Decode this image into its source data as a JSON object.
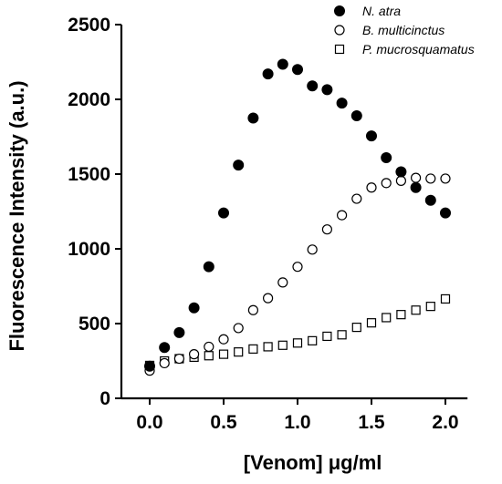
{
  "chart_data": {
    "type": "scatter",
    "xlabel": "[Venom] μg/ml",
    "ylabel": "Fluorescence Intensity (a.u.)",
    "xlim": [
      -0.1,
      2.1
    ],
    "ylim": [
      0,
      2500
    ],
    "xticks": [
      "0.0",
      "0.5",
      "1.0",
      "1.5",
      "2.0"
    ],
    "yticks": [
      "0",
      "500",
      "1000",
      "1500",
      "2000",
      "2500"
    ],
    "xtick_values": [
      0,
      0.5,
      1.0,
      1.5,
      2.0
    ],
    "ytick_values": [
      0,
      500,
      1000,
      1500,
      2000,
      2500
    ],
    "legend_position": "top-right",
    "series": [
      {
        "name": "N. atra",
        "marker": "filled-circle",
        "color": "#000000",
        "x": [
          0.0,
          0.1,
          0.2,
          0.3,
          0.4,
          0.5,
          0.6,
          0.7,
          0.8,
          0.9,
          1.0,
          1.1,
          1.2,
          1.3,
          1.4,
          1.5,
          1.6,
          1.7,
          1.8,
          1.9,
          2.0
        ],
        "y": [
          215,
          340,
          440,
          605,
          880,
          1240,
          1560,
          1875,
          2170,
          2235,
          2200,
          2090,
          2065,
          1975,
          1890,
          1755,
          1610,
          1515,
          1410,
          1325,
          1240
        ]
      },
      {
        "name": "B. multicinctus",
        "marker": "open-circle",
        "color": "#000000",
        "x": [
          0.0,
          0.1,
          0.2,
          0.3,
          0.4,
          0.5,
          0.6,
          0.7,
          0.8,
          0.9,
          1.0,
          1.1,
          1.2,
          1.3,
          1.4,
          1.5,
          1.6,
          1.7,
          1.8,
          1.9,
          2.0
        ],
        "y": [
          185,
          235,
          265,
          295,
          345,
          395,
          470,
          590,
          670,
          775,
          880,
          995,
          1130,
          1225,
          1335,
          1410,
          1440,
          1455,
          1475,
          1470,
          1470
        ]
      },
      {
        "name": "P. mucrosquamatus",
        "marker": "open-square",
        "color": "#000000",
        "x": [
          0.0,
          0.1,
          0.2,
          0.3,
          0.4,
          0.5,
          0.6,
          0.7,
          0.8,
          0.9,
          1.0,
          1.1,
          1.2,
          1.3,
          1.4,
          1.5,
          1.6,
          1.7,
          1.8,
          1.9,
          2.0
        ],
        "y": [
          220,
          250,
          265,
          275,
          285,
          295,
          310,
          330,
          345,
          355,
          370,
          385,
          415,
          425,
          475,
          505,
          540,
          560,
          590,
          615,
          665
        ]
      }
    ]
  }
}
